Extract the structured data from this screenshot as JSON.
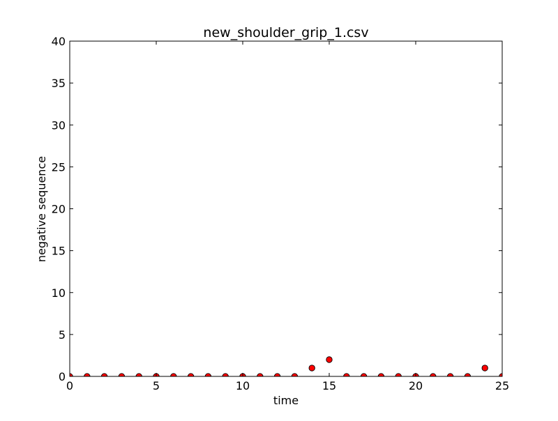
{
  "chart_data": {
    "type": "scatter",
    "title": "new_shoulder_grip_1.csv",
    "xlabel": "time",
    "ylabel": "negative sequence",
    "xlim": [
      0,
      25
    ],
    "ylim": [
      0,
      40
    ],
    "xticks": [
      "0",
      "5",
      "10",
      "15",
      "20",
      "25"
    ],
    "yticks": [
      "0",
      "5",
      "10",
      "15",
      "20",
      "25",
      "30",
      "35",
      "40"
    ],
    "grid": false,
    "legend": "none",
    "marker_color": "#ff0000",
    "series": [
      {
        "x": [
          0,
          1,
          2,
          3,
          4,
          5,
          6,
          7,
          8,
          9,
          10,
          11,
          12,
          13,
          14,
          15,
          16,
          17,
          18,
          19,
          20,
          21,
          22,
          23,
          24,
          25
        ],
        "y": [
          0,
          0,
          0,
          0,
          0,
          0,
          0,
          0,
          0,
          0,
          0,
          0,
          0,
          0,
          1,
          2,
          0,
          0,
          0,
          0,
          0,
          0,
          0,
          0,
          1,
          0
        ]
      }
    ]
  }
}
